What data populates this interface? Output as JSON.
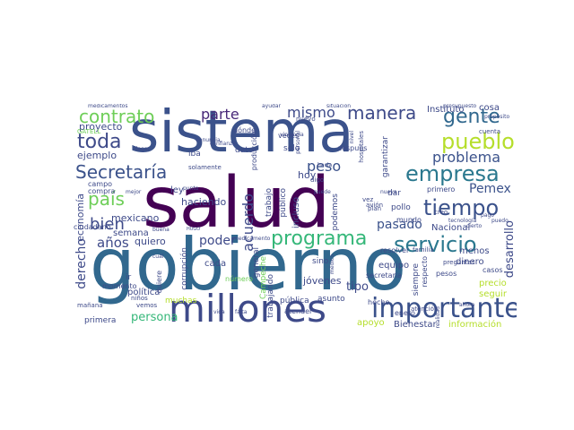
{
  "words": [
    {
      "text": "salud",
      "color": "#440154"
    },
    {
      "text": "sistema",
      "color": "#3b528b"
    },
    {
      "text": "gobierno",
      "color": "#31688e"
    },
    {
      "text": "millones",
      "color": "#3e4a89"
    },
    {
      "text": "importante",
      "color": "#3b528b"
    },
    {
      "text": "servicio",
      "color": "#2a788e"
    },
    {
      "text": "programa",
      "color": "#35b779"
    },
    {
      "text": "empresa",
      "color": "#2a788e"
    },
    {
      "text": "tiempo",
      "color": "#3b528b"
    },
    {
      "text": "pueblo",
      "color": "#b5de2b"
    },
    {
      "text": "gente",
      "color": "#31688e"
    },
    {
      "text": "manera",
      "color": "#3e4a89"
    },
    {
      "text": "contrato",
      "color": "#6ece58"
    },
    {
      "text": "toda",
      "color": "#3e4a89"
    },
    {
      "text": "Secretaría",
      "color": "#3b528b"
    },
    {
      "text": "país",
      "color": "#6ece58"
    },
    {
      "text": "bien",
      "color": "#3e4a89"
    },
    {
      "text": "peso",
      "color": "#3b528b"
    },
    {
      "text": "mismo",
      "color": "#3e4a89"
    },
    {
      "text": "parte",
      "color": "#482878"
    },
    {
      "text": "problema",
      "color": "#3b528b"
    },
    {
      "text": "pasado",
      "color": "#3b528b"
    },
    {
      "text": "Pemex",
      "color": "#3b528b"
    },
    {
      "text": "acuerdo",
      "color": "#3e4a89"
    },
    {
      "text": "ejemplo",
      "color": "#3e4a89"
    },
    {
      "text": "años",
      "color": "#3e4a89"
    },
    {
      "text": "quiero",
      "color": "#3e4a89"
    },
    {
      "text": "poder",
      "color": "#3e4a89"
    },
    {
      "text": "persona",
      "color": "#35b779"
    },
    {
      "text": "derecho",
      "color": "#3e4a89"
    },
    {
      "text": "desarrollo",
      "color": "#3e4a89"
    },
    {
      "text": "economía",
      "color": "#3e4a89"
    },
    {
      "text": "mexicano",
      "color": "#3e4a89"
    },
    {
      "text": "haciendo",
      "color": "#3e4a89"
    },
    {
      "text": "hoy",
      "color": "#3e4a89"
    },
    {
      "text": "tipo",
      "color": "#3e4a89"
    },
    {
      "text": "jóvenes",
      "color": "#3e4a89"
    },
    {
      "text": "Bienestar",
      "color": "#3e4a89"
    },
    {
      "text": "información",
      "color": "#b5de2b"
    },
    {
      "text": "apoyo",
      "color": "#b5de2b"
    },
    {
      "text": "Nacional",
      "color": "#3e4a89"
    },
    {
      "text": "Instituto",
      "color": "#3e4a89"
    },
    {
      "text": "cosa",
      "color": "#3e4a89"
    },
    {
      "text": "equipo",
      "color": "#3e4a89"
    },
    {
      "text": "dinero",
      "color": "#3e4a89"
    },
    {
      "text": "menos",
      "color": "#3e4a89"
    },
    {
      "text": "semana",
      "color": "#3e4a89"
    },
    {
      "text": "ley",
      "color": "#3e4a89"
    },
    {
      "text": "cada",
      "color": "#3e4a89"
    },
    {
      "text": "política",
      "color": "#3e4a89"
    },
    {
      "text": "primera",
      "color": "#3e4a89"
    },
    {
      "text": "dar",
      "color": "#3e4a89"
    },
    {
      "text": "primero",
      "color": "#3e4a89"
    },
    {
      "text": "pollo",
      "color": "#3e4a89"
    },
    {
      "text": "sino",
      "color": "#3e4a89"
    },
    {
      "text": "asunto",
      "color": "#3e4a89"
    },
    {
      "text": "pública",
      "color": "#3e4a89"
    },
    {
      "text": "trabajo",
      "color": "#3e4a89"
    },
    {
      "text": "público",
      "color": "#3e4a89"
    },
    {
      "text": "incluso",
      "color": "#3e4a89"
    },
    {
      "text": "general",
      "color": "#3e4a89"
    },
    {
      "text": "podemos",
      "color": "#3e4a89"
    },
    {
      "text": "sólo",
      "color": "#3e4a89"
    },
    {
      "text": "dato",
      "color": "#3e4a89"
    },
    {
      "text": "corrupción",
      "color": "#3e4a89"
    },
    {
      "text": "muchas",
      "color": "#b5de2b"
    },
    {
      "text": "Campeche",
      "color": "#6ece58"
    },
    {
      "text": "trabajando",
      "color": "#3e4a89"
    },
    {
      "text": "garantizar",
      "color": "#3e4a89"
    },
    {
      "text": "siempre",
      "color": "#3e4a89"
    },
    {
      "text": "precio",
      "color": "#b5de2b"
    },
    {
      "text": "seguir",
      "color": "#b5de2b"
    },
    {
      "text": "casos",
      "color": "#3e4a89"
    },
    {
      "text": "respecto",
      "color": "#3e4a89"
    },
    {
      "text": "pesos",
      "color": "#3e4a89"
    },
    {
      "text": "enero",
      "color": "#3e4a89"
    },
    {
      "text": "mundo",
      "color": "#3e4a89"
    },
    {
      "text": "producción",
      "color": "#3e4a89"
    },
    {
      "text": "después",
      "color": "#3e4a89"
    },
    {
      "text": "resolver",
      "color": "#3e4a89"
    },
    {
      "text": "hecho",
      "color": "#3e4a89"
    },
    {
      "text": "secretaria",
      "color": "#3e4a89"
    },
    {
      "text": "atender",
      "color": "#3e4a89"
    },
    {
      "text": "número",
      "color": "#6ece58"
    },
    {
      "text": "quiere",
      "color": "#3e4a89"
    },
    {
      "text": "momento",
      "color": "#3e4a89"
    },
    {
      "text": "ciudadano",
      "color": "#3e4a89"
    },
    {
      "text": "compra",
      "color": "#3e4a89"
    },
    {
      "text": "campo",
      "color": "#3e4a89"
    },
    {
      "text": "proyecto",
      "color": "#3e4a89"
    },
    {
      "text": "GATELL",
      "color": "#6ece58"
    },
    {
      "text": "solamente",
      "color": "#3e4a89"
    },
    {
      "text": "iba",
      "color": "#3e4a89"
    },
    {
      "text": "dónde",
      "color": "#3e4a89"
    },
    {
      "text": "veces",
      "color": "#3e4a89"
    },
    {
      "text": "nuevo",
      "color": "#3e4a89"
    },
    {
      "text": "familia",
      "color": "#3e4a89"
    },
    {
      "text": "avión",
      "color": "#3e4a89"
    },
    {
      "text": "vez",
      "color": "#3e4a89"
    },
    {
      "text": "plan",
      "color": "#3e4a89"
    },
    {
      "text": "creo",
      "color": "#3e4a89"
    },
    {
      "text": "atención",
      "color": "#3e4a89"
    },
    {
      "text": "preguntas",
      "color": "#3e4a89"
    },
    {
      "text": "cuenta",
      "color": "#3e4a89"
    },
    {
      "text": "mañana",
      "color": "#3e4a89"
    },
    {
      "text": "niños",
      "color": "#3e4a89"
    },
    {
      "text": "vemos",
      "color": "#3e4a89"
    },
    {
      "text": "ir",
      "color": "#3e4a89"
    },
    {
      "text": "medicamentos",
      "color": "#3e4a89"
    },
    {
      "text": "hacia",
      "color": "#3e4a89"
    },
    {
      "text": "digo",
      "color": "#3e4a89"
    },
    {
      "text": "puede",
      "color": "#3e4a89"
    },
    {
      "text": "médico",
      "color": "#3e4a89"
    },
    {
      "text": "ayudar",
      "color": "#3e4a89"
    },
    {
      "text": "violencia",
      "color": "#3e4a89"
    },
    {
      "text": "personal",
      "color": "#3e4a89"
    },
    {
      "text": "nivel",
      "color": "#3e4a89"
    },
    {
      "text": "hospitales",
      "color": "#3e4a89"
    },
    {
      "text": "presupuesto",
      "color": "#3e4a89"
    },
    {
      "text": "propósito",
      "color": "#3e4a89"
    },
    {
      "text": "mejor",
      "color": "#3e4a89"
    },
    {
      "text": "confianza",
      "color": "#3e4a89"
    },
    {
      "text": "nueva",
      "color": "#3e4a89"
    },
    {
      "text": "tecnología",
      "color": "#3e4a89"
    },
    {
      "text": "pago",
      "color": "#3e4a89"
    },
    {
      "text": "puedo",
      "color": "#3e4a89"
    },
    {
      "text": "falta",
      "color": "#3e4a89"
    },
    {
      "text": "denuncia",
      "color": "#3e4a89"
    },
    {
      "text": "situación",
      "color": "#3e4a89"
    },
    {
      "text": "llegar",
      "color": "#3e4a89"
    },
    {
      "text": "HUGO",
      "color": "#3e4a89"
    },
    {
      "text": "buena",
      "color": "#3e4a89"
    },
    {
      "text": "cuál",
      "color": "#3e4a89"
    },
    {
      "text": "cierto",
      "color": "#3e4a89"
    },
    {
      "text": "medicamento",
      "color": "#3e4a89"
    },
    {
      "text": "realidad",
      "color": "#3e4a89"
    },
    {
      "text": "vida",
      "color": "#3e4a89"
    },
    {
      "text": "ahora",
      "color": "#3e4a89"
    },
    {
      "text": "punto",
      "color": "#3e4a89"
    }
  ]
}
